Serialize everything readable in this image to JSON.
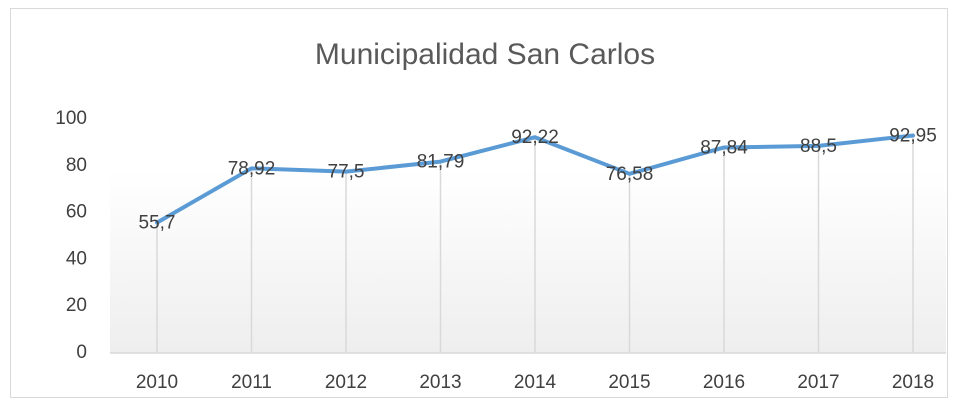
{
  "chart_data": {
    "type": "line",
    "title": "Municipalidad San Carlos",
    "categories": [
      "2010",
      "2011",
      "2012",
      "2013",
      "2014",
      "2015",
      "2016",
      "2017",
      "2018"
    ],
    "series": [
      {
        "name": "Municipalidad San Carlos",
        "color": "#5b9bd5",
        "values": [
          55.7,
          78.92,
          77.5,
          81.79,
          92.22,
          76.58,
          87.84,
          88.5,
          92.95
        ],
        "value_labels": [
          "55,7",
          "78,92",
          "77,5",
          "81,79",
          "92,22",
          "76,58",
          "87,84",
          "88,5",
          "92,95"
        ]
      }
    ],
    "ylim": [
      0,
      100
    ],
    "yticks": [
      0,
      20,
      40,
      60,
      80,
      100
    ],
    "grid": false,
    "drop_lines": true
  }
}
